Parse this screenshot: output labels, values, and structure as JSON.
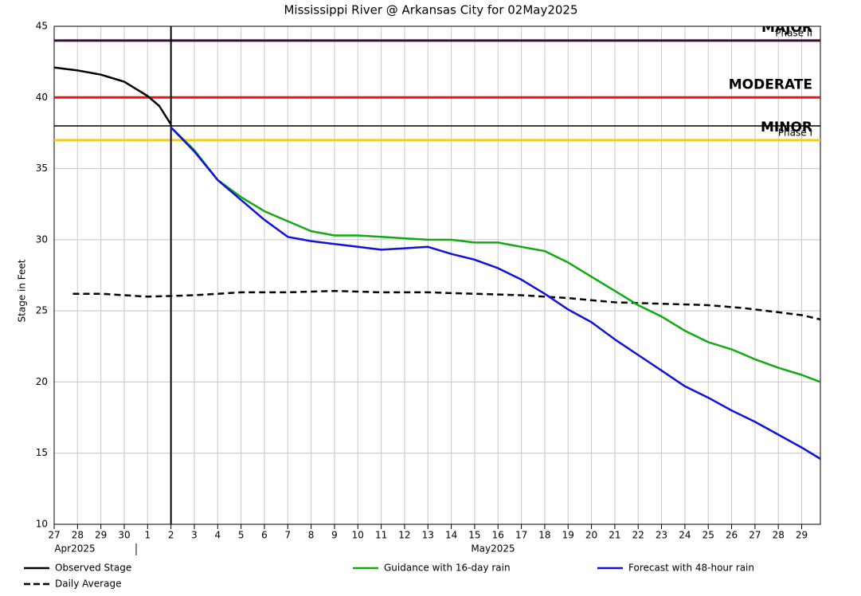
{
  "chart_data": {
    "type": "line",
    "title": "Mississippi River @ Arkansas City for 02May2025",
    "y_label": "Stage in Feet",
    "month_labels": [
      "Apr2025",
      "May2025"
    ],
    "xlim": [
      0,
      32.8
    ],
    "ylim": [
      10,
      45
    ],
    "yticks": [
      10,
      15,
      20,
      25,
      30,
      35,
      40,
      45
    ],
    "xticks": [
      {
        "value": 0,
        "label": "27"
      },
      {
        "value": 1,
        "label": "28"
      },
      {
        "value": 2,
        "label": "29"
      },
      {
        "value": 3,
        "label": "30"
      },
      {
        "value": 4,
        "label": "1"
      },
      {
        "value": 5,
        "label": "2"
      },
      {
        "value": 6,
        "label": "3"
      },
      {
        "value": 7,
        "label": "4"
      },
      {
        "value": 8,
        "label": "5"
      },
      {
        "value": 9,
        "label": "6"
      },
      {
        "value": 10,
        "label": "7"
      },
      {
        "value": 11,
        "label": "8"
      },
      {
        "value": 12,
        "label": "9"
      },
      {
        "value": 13,
        "label": "10"
      },
      {
        "value": 14,
        "label": "11"
      },
      {
        "value": 15,
        "label": "12"
      },
      {
        "value": 16,
        "label": "13"
      },
      {
        "value": 17,
        "label": "14"
      },
      {
        "value": 18,
        "label": "15"
      },
      {
        "value": 19,
        "label": "16"
      },
      {
        "value": 20,
        "label": "17"
      },
      {
        "value": 21,
        "label": "18"
      },
      {
        "value": 22,
        "label": "19"
      },
      {
        "value": 23,
        "label": "20"
      },
      {
        "value": 24,
        "label": "21"
      },
      {
        "value": 25,
        "label": "22"
      },
      {
        "value": 26,
        "label": "23"
      },
      {
        "value": 27,
        "label": "24"
      },
      {
        "value": 28,
        "label": "25"
      },
      {
        "value": 29,
        "label": "26"
      },
      {
        "value": 30,
        "label": "27"
      },
      {
        "value": 31,
        "label": "28"
      },
      {
        "value": 32,
        "label": "29"
      }
    ],
    "grid": true,
    "current_x": 5,
    "flood_levels": [
      {
        "value": 44,
        "color": "#3d0a3d",
        "label": "MAJOR",
        "label_color": "#7a2a7a",
        "phase": "Phase II"
      },
      {
        "value": 40,
        "color": "#ee1111",
        "label": "MODERATE",
        "label_color": "#ee1111"
      },
      {
        "value": 38,
        "color": "#000000"
      },
      {
        "value": 37,
        "color": "#f2cc1a",
        "label": "MINOR",
        "label_color": "#f2cc1a",
        "phase": "Phase I"
      }
    ],
    "series": [
      {
        "name": "Observed Stage",
        "color": "#000000",
        "dash": false,
        "x": [
          0,
          1,
          2,
          3,
          3.5,
          4,
          4.5,
          5
        ],
        "values": [
          42.1,
          41.9,
          41.6,
          41.1,
          40.6,
          40.1,
          39.4,
          38.1
        ]
      },
      {
        "name": "Daily Average",
        "color": "#000000",
        "dash": true,
        "x": [
          0.8,
          2,
          4,
          6,
          8,
          10,
          12,
          14,
          16,
          18,
          20,
          22,
          24,
          26,
          28,
          29.5,
          31,
          32,
          32.8
        ],
        "values": [
          26.2,
          26.2,
          26.0,
          26.1,
          26.3,
          26.3,
          26.4,
          26.3,
          26.3,
          26.2,
          26.1,
          25.9,
          25.6,
          25.5,
          25.4,
          25.2,
          24.9,
          24.7,
          24.4
        ]
      },
      {
        "name": "Guidance with 16-day rain",
        "color": "#11aa11",
        "dash": false,
        "x": [
          5,
          6,
          7,
          8,
          9,
          10,
          11,
          12,
          13,
          14,
          15,
          16,
          17,
          18,
          19,
          20,
          21,
          22,
          23,
          24,
          25,
          26,
          27,
          28,
          29,
          30,
          31,
          32,
          32.8
        ],
        "values": [
          37.9,
          36.3,
          34.2,
          33.0,
          32.0,
          31.3,
          30.6,
          30.3,
          30.3,
          30.2,
          30.1,
          30.0,
          30.0,
          29.8,
          29.8,
          29.5,
          29.2,
          28.4,
          27.4,
          26.4,
          25.4,
          24.6,
          23.6,
          22.8,
          22.3,
          21.6,
          21.0,
          20.5,
          20.0
        ]
      },
      {
        "name": "Forecast with 48-hour rain",
        "color": "#1111dd",
        "dash": false,
        "x": [
          5,
          6,
          7,
          8,
          9,
          10,
          11,
          12,
          13,
          14,
          15,
          16,
          17,
          18,
          19,
          20,
          21,
          22,
          23,
          24,
          25,
          26,
          27,
          28,
          29,
          30,
          31,
          32,
          32.8
        ],
        "values": [
          37.9,
          36.2,
          34.2,
          32.8,
          31.4,
          30.2,
          29.9,
          29.7,
          29.5,
          29.3,
          29.4,
          29.5,
          29.0,
          28.6,
          28.0,
          27.2,
          26.2,
          25.1,
          24.2,
          23.0,
          21.9,
          20.8,
          19.7,
          18.9,
          18.0,
          17.2,
          16.3,
          15.4,
          14.6
        ]
      }
    ]
  }
}
